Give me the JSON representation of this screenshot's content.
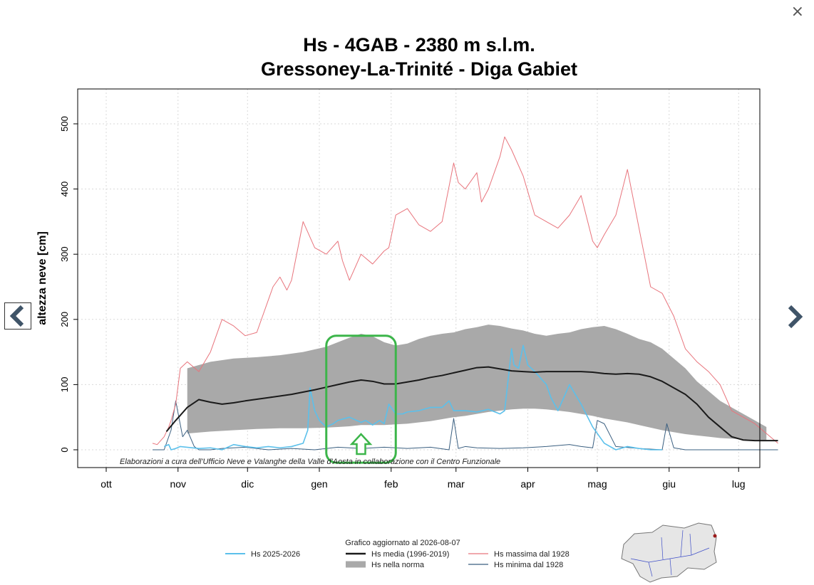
{
  "ui": {
    "close_label": "×"
  },
  "chart_data": {
    "type": "line",
    "title": "Hs - 4GAB - 2380 m s.l.m.",
    "subtitle": "Gressoney-La-Trinité - Diga Gabiet",
    "ylabel": "altezza neve [cm]",
    "xlabel": "",
    "ylim": [
      -25,
      525
    ],
    "yticks": [
      0,
      100,
      200,
      300,
      400,
      500
    ],
    "xlim": [
      0,
      300
    ],
    "month_ticks": [
      {
        "label": "ott",
        "day": 0
      },
      {
        "label": "nov",
        "day": 31
      },
      {
        "label": "dic",
        "day": 61
      },
      {
        "label": "gen",
        "day": 92
      },
      {
        "label": "feb",
        "day": 123
      },
      {
        "label": "mar",
        "day": 151
      },
      {
        "label": "apr",
        "day": 182
      },
      {
        "label": "mag",
        "day": 212
      },
      {
        "label": "giu",
        "day": 243
      },
      {
        "label": "lug",
        "day": 273
      }
    ],
    "grid": true,
    "credit": "Elaborazioni a cura dell'Ufficio Neve e Valanghe della Valle d'Aosta in collaborazione con il Centro Funzionale",
    "updated": "Grafico aggiornato al 2026-08-07",
    "legend_position": "bottom",
    "colors": {
      "current": "#5bc0eb",
      "media": "#1a1a1a",
      "massima": "#e8747c",
      "minima": "#3a5f80",
      "norma": "#a9a9a9",
      "highlight": "#3cb54a"
    },
    "series": [
      {
        "name": "Hs 2025-2026",
        "x": [
          25,
          27,
          28,
          30,
          32,
          40,
          45,
          50,
          55,
          60,
          65,
          70,
          75,
          80,
          85,
          87,
          88,
          90,
          92,
          95,
          98,
          100,
          105,
          110,
          112,
          115,
          118,
          120,
          122,
          125,
          128,
          130,
          135,
          140,
          145,
          148,
          150,
          155,
          160,
          165,
          170,
          172,
          175,
          176,
          178,
          180,
          181,
          182,
          185,
          190,
          192,
          195,
          200,
          205,
          210,
          215,
          220,
          225,
          230,
          235,
          240
        ],
        "y": [
          5,
          8,
          0,
          2,
          5,
          2,
          3,
          0,
          8,
          5,
          3,
          5,
          3,
          5,
          10,
          30,
          95,
          60,
          45,
          35,
          40,
          45,
          50,
          42,
          45,
          38,
          45,
          40,
          70,
          55,
          55,
          58,
          60,
          65,
          65,
          75,
          60,
          60,
          58,
          62,
          55,
          60,
          155,
          130,
          125,
          160,
          145,
          130,
          120,
          100,
          80,
          60,
          100,
          70,
          35,
          10,
          0,
          5,
          2,
          0,
          0
        ]
      },
      {
        "name": "Hs media (1996-2019)",
        "x": [
          26,
          30,
          35,
          40,
          45,
          50,
          55,
          60,
          70,
          80,
          90,
          95,
          100,
          105,
          110,
          115,
          120,
          125,
          130,
          135,
          140,
          145,
          150,
          155,
          160,
          165,
          170,
          175,
          180,
          185,
          190,
          195,
          200,
          205,
          210,
          215,
          220,
          225,
          230,
          235,
          240,
          245,
          250,
          255,
          260,
          265,
          270,
          275,
          280,
          285,
          290
        ],
        "y": [
          28,
          45,
          65,
          77,
          73,
          70,
          72,
          75,
          80,
          85,
          92,
          96,
          100,
          104,
          107,
          105,
          101,
          101,
          104,
          107,
          111,
          114,
          118,
          122,
          126,
          127,
          124,
          121,
          120,
          119,
          120,
          120,
          120,
          120,
          119,
          117,
          116,
          117,
          116,
          112,
          105,
          95,
          85,
          70,
          50,
          35,
          20,
          15,
          14,
          14,
          14
        ]
      },
      {
        "name": "Hs massima dal 1928",
        "x": [
          20,
          22,
          25,
          27,
          28,
          30,
          32,
          35,
          40,
          45,
          50,
          55,
          60,
          65,
          70,
          72,
          75,
          78,
          80,
          85,
          90,
          95,
          100,
          102,
          105,
          110,
          115,
          120,
          122,
          125,
          130,
          135,
          140,
          145,
          150,
          152,
          155,
          160,
          162,
          165,
          170,
          172,
          175,
          180,
          185,
          190,
          195,
          200,
          205,
          210,
          212,
          215,
          220,
          225,
          230,
          235,
          240,
          245,
          250,
          255,
          260,
          265,
          270,
          275,
          280,
          285,
          290
        ],
        "y": [
          10,
          8,
          20,
          35,
          45,
          70,
          125,
          135,
          120,
          150,
          200,
          190,
          175,
          180,
          230,
          250,
          265,
          245,
          260,
          350,
          310,
          300,
          320,
          290,
          260,
          300,
          285,
          305,
          310,
          360,
          370,
          345,
          335,
          350,
          440,
          410,
          400,
          425,
          380,
          400,
          450,
          480,
          460,
          420,
          360,
          350,
          340,
          360,
          390,
          320,
          310,
          330,
          360,
          430,
          340,
          250,
          240,
          205,
          155,
          135,
          120,
          100,
          60,
          50,
          40,
          25,
          10
        ]
      },
      {
        "name": "Hs minima dal 1928",
        "x": [
          20,
          25,
          28,
          30,
          33,
          35,
          38,
          40,
          45,
          50,
          60,
          70,
          80,
          90,
          100,
          110,
          120,
          130,
          140,
          148,
          150,
          152,
          155,
          160,
          170,
          180,
          190,
          200,
          205,
          210,
          212,
          215,
          220,
          230,
          240,
          242,
          245,
          250,
          255,
          260,
          290
        ],
        "y": [
          0,
          0,
          30,
          75,
          20,
          30,
          5,
          0,
          0,
          2,
          4,
          0,
          2,
          0,
          4,
          2,
          4,
          2,
          4,
          0,
          48,
          2,
          5,
          3,
          2,
          3,
          5,
          8,
          5,
          3,
          45,
          40,
          5,
          2,
          0,
          40,
          3,
          0,
          0,
          0,
          0
        ]
      }
    ],
    "band": {
      "name": "Hs nella norma",
      "x": [
        35,
        45,
        55,
        65,
        75,
        85,
        95,
        100,
        105,
        110,
        115,
        120,
        125,
        130,
        135,
        140,
        145,
        150,
        155,
        160,
        165,
        170,
        175,
        180,
        185,
        190,
        195,
        200,
        205,
        210,
        215,
        220,
        225,
        230,
        235,
        240,
        245,
        250,
        255,
        260,
        265,
        270,
        275,
        280,
        285
      ],
      "upper": [
        125,
        135,
        140,
        142,
        145,
        150,
        158,
        165,
        172,
        178,
        174,
        165,
        160,
        163,
        170,
        175,
        178,
        180,
        185,
        188,
        192,
        190,
        186,
        183,
        178,
        175,
        178,
        180,
        185,
        188,
        190,
        185,
        178,
        170,
        165,
        155,
        140,
        125,
        105,
        90,
        75,
        65,
        55,
        45,
        35
      ],
      "lower": [
        25,
        28,
        30,
        32,
        33,
        33,
        34,
        35,
        36,
        38,
        38,
        38,
        39,
        40,
        42,
        44,
        47,
        50,
        52,
        55,
        58,
        60,
        62,
        63,
        63,
        62,
        60,
        58,
        55,
        52,
        48,
        45,
        42,
        38,
        34,
        30,
        27,
        24,
        22,
        20,
        18,
        17,
        16,
        15,
        15
      ]
    },
    "highlight": {
      "x_start": 95,
      "x_end": 125,
      "y_start": 2,
      "y_end": 175
    }
  }
}
